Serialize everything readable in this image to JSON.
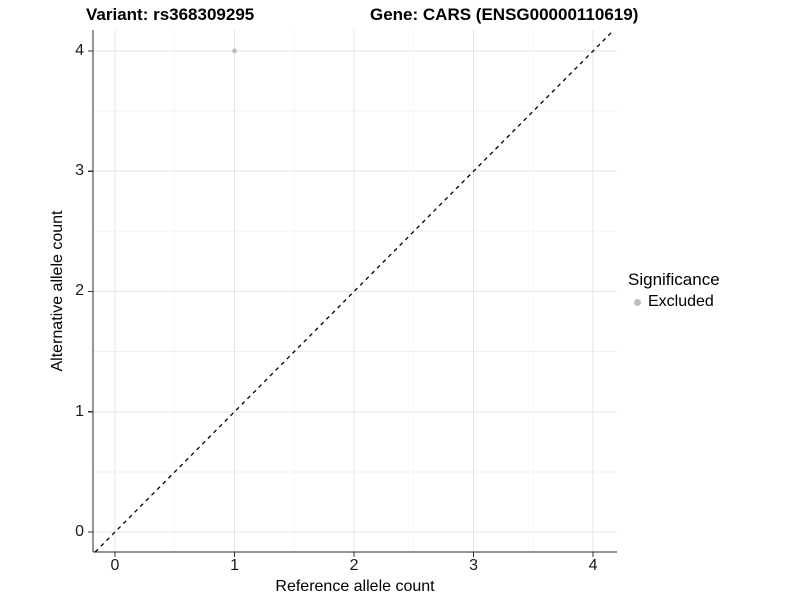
{
  "header": {
    "variant_title": "Variant: rs368309295",
    "gene_title": "Gene: CARS (ENSG00000110619)"
  },
  "chart_data": {
    "type": "scatter",
    "xlabel": "Reference allele count",
    "ylabel": "Alternative allele count",
    "x_ticks": [
      0,
      1,
      2,
      3,
      4
    ],
    "y_ticks": [
      0,
      1,
      2,
      3,
      4
    ],
    "xlim": [
      -0.184,
      4.2
    ],
    "ylim": [
      -0.166,
      4.174
    ],
    "minor_grid_step": 0.5,
    "grid": true,
    "legend_position": "right",
    "points": [
      {
        "x": 1,
        "y": 4,
        "series": "Excluded"
      }
    ],
    "reference_line": {
      "slope": 1,
      "intercept": 0,
      "style": "dashed",
      "color": "#000000"
    },
    "colors": {
      "excluded": "#bdbdbd",
      "grid_major": "#e4e4e4",
      "grid_minor": "#f0f0f0",
      "axis_line": "#2b2b2b",
      "tick_mark": "#333333"
    }
  },
  "legend": {
    "title": "Significance",
    "items": [
      {
        "label": "Excluded",
        "color": "#bdbdbd"
      }
    ]
  }
}
